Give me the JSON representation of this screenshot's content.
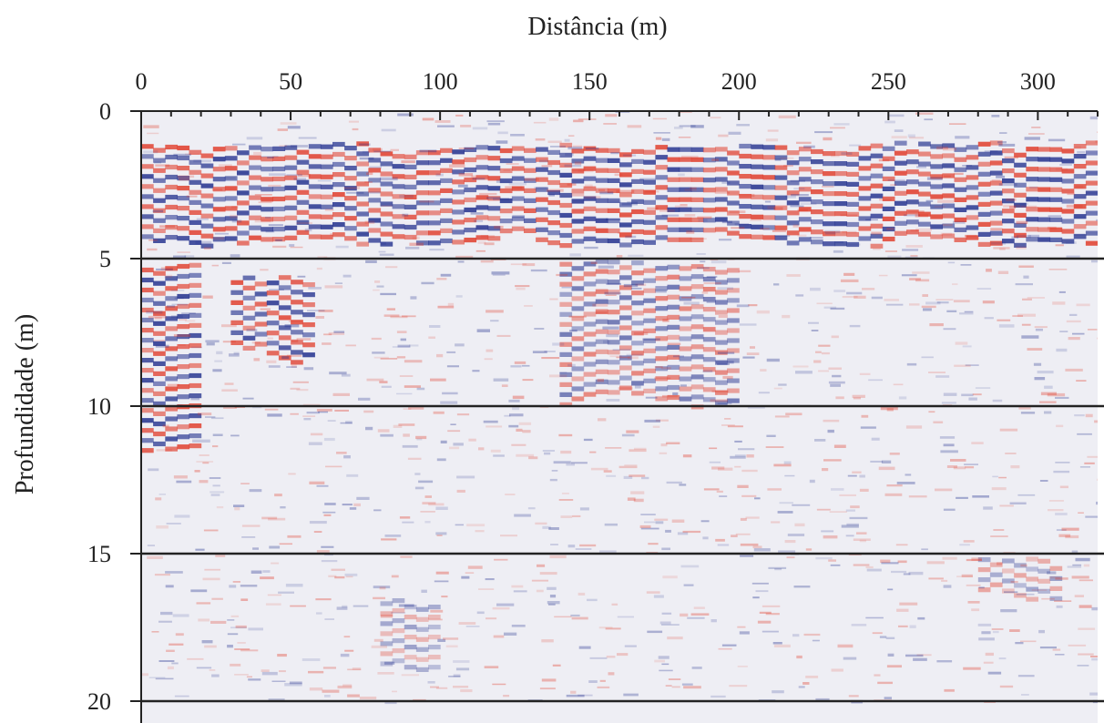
{
  "chart_data": {
    "type": "heatmap",
    "title": "",
    "xlabel": "Distância (m)",
    "ylabel": "Profundidade (m)",
    "xlim": [
      0,
      320
    ],
    "ylim": [
      0,
      20
    ],
    "x_ticks": [
      0,
      50,
      100,
      150,
      200,
      250,
      300
    ],
    "y_ticks": [
      0,
      5,
      10,
      15,
      20
    ],
    "x_minor_step": 10,
    "x_axis_position": "top",
    "y_axis_direction": "downward",
    "horizontal_lines_at_depth": [
      5,
      10,
      15,
      20
    ],
    "colors": {
      "positive": "#e03a28",
      "negative": "#1f2d8c",
      "background": "#eeeef4",
      "axis": "#222222"
    },
    "reflector_bands": [
      {
        "name": "",
        "x": [
          0,
          320
        ],
        "depth": [
          1.0,
          4.5
        ],
        "intensity": "strong"
      },
      {
        "name": "",
        "x": [
          0,
          20
        ],
        "depth": [
          5.0,
          11.5
        ],
        "intensity": "strong"
      },
      {
        "name": "",
        "x": [
          30,
          55
        ],
        "depth": [
          5.5,
          8.5
        ],
        "intensity": "strong"
      },
      {
        "name": "",
        "x": [
          140,
          200
        ],
        "depth": [
          5.0,
          10.0
        ],
        "intensity": "medium"
      },
      {
        "name": "",
        "x": [
          80,
          100
        ],
        "depth": [
          16.5,
          19.0
        ],
        "intensity": "weak"
      },
      {
        "name": "",
        "x": [
          280,
          305
        ],
        "depth": [
          15.0,
          16.5
        ],
        "intensity": "weak"
      }
    ]
  }
}
